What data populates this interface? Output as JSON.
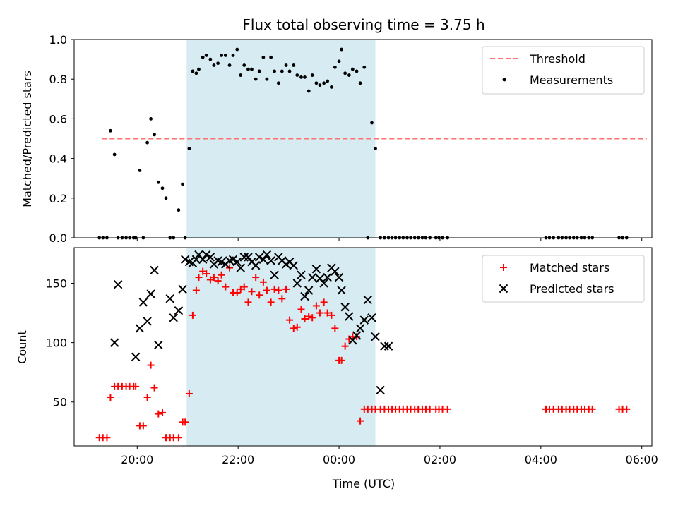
{
  "chart_data": [
    {
      "type": "scatter",
      "title": "Flux total observing time = 3.75 h",
      "xlabel": "",
      "ylabel": "Matched/Predicted stars",
      "xlim_hours": [
        18.75,
        30.2
      ],
      "ylim": [
        0,
        1.0
      ],
      "yticks": [
        0.0,
        0.2,
        0.4,
        0.6,
        0.8,
        1.0
      ],
      "ytick_labels": [
        "0.0",
        "0.2",
        "0.4",
        "0.6",
        "0.8",
        "1.0"
      ],
      "xtick_hours": [
        20,
        22,
        24,
        26,
        28,
        30
      ],
      "shaded_interval_hours": [
        20.98,
        24.72
      ],
      "shade_color": "#add8e6",
      "threshold": {
        "name": "Threshold",
        "value": 0.5,
        "x_start": 19.3,
        "x_end": 30.1,
        "color": "#ff7070"
      },
      "legend": [
        "Threshold",
        "Measurements"
      ],
      "legend_position": "upper right",
      "series": [
        {
          "name": "Measurements",
          "marker": "dot",
          "color": "#000000",
          "x": [
            19.25,
            19.32,
            19.4,
            19.47,
            19.55,
            19.62,
            19.7,
            19.78,
            19.85,
            19.93,
            19.97,
            20.05,
            20.12,
            20.2,
            20.27,
            20.34,
            20.42,
            20.5,
            20.57,
            20.65,
            20.72,
            20.82,
            20.9,
            20.95,
            21.03,
            21.1,
            21.17,
            21.22,
            21.3,
            21.37,
            21.45,
            21.52,
            21.6,
            21.67,
            21.75,
            21.83,
            21.9,
            21.98,
            22.05,
            22.12,
            22.2,
            22.27,
            22.35,
            22.42,
            22.5,
            22.57,
            22.65,
            22.72,
            22.8,
            22.87,
            22.95,
            23.02,
            23.1,
            23.17,
            23.25,
            23.32,
            23.4,
            23.47,
            23.55,
            23.62,
            23.7,
            23.77,
            23.85,
            23.92,
            24.0,
            24.05,
            24.12,
            24.2,
            24.27,
            24.35,
            24.42,
            24.5,
            24.57,
            24.65,
            24.72,
            24.82,
            24.9,
            24.98,
            25.05,
            25.12,
            25.2,
            25.27,
            25.35,
            25.42,
            25.5,
            25.57,
            25.65,
            25.72,
            25.8,
            25.92,
            25.98,
            26.05,
            26.15,
            28.1,
            28.17,
            28.25,
            28.35,
            28.42,
            28.5,
            28.57,
            28.65,
            28.72,
            28.8,
            28.87,
            28.95,
            29.02,
            29.55,
            29.62,
            29.7
          ],
          "y": [
            0.0,
            0.0,
            0.0,
            0.54,
            0.42,
            0.0,
            0.0,
            0.0,
            0.0,
            0.0,
            0.0,
            0.34,
            0.0,
            0.48,
            0.6,
            0.52,
            0.28,
            0.25,
            0.2,
            0.0,
            0.0,
            0.14,
            0.27,
            0.0,
            0.45,
            0.84,
            0.83,
            0.85,
            0.91,
            0.92,
            0.9,
            0.87,
            0.88,
            0.92,
            0.92,
            0.87,
            0.92,
            0.95,
            0.82,
            0.87,
            0.85,
            0.85,
            0.8,
            0.84,
            0.91,
            0.8,
            0.91,
            0.84,
            0.78,
            0.84,
            0.87,
            0.84,
            0.87,
            0.82,
            0.81,
            0.81,
            0.74,
            0.82,
            0.78,
            0.77,
            0.78,
            0.79,
            0.76,
            0.86,
            0.89,
            0.95,
            0.83,
            0.82,
            0.85,
            0.84,
            0.78,
            0.86,
            0.0,
            0.58,
            0.45,
            0.0,
            0.0,
            0.0,
            0.0,
            0.0,
            0.0,
            0.0,
            0.0,
            0.0,
            0.0,
            0.0,
            0.0,
            0.0,
            0.0,
            0.0,
            0.0,
            0.0,
            0.0,
            0.0,
            0.0,
            0.0,
            0.0,
            0.0,
            0.0,
            0.0,
            0.0,
            0.0,
            0.0,
            0.0,
            0.0,
            0.0,
            0.0,
            0.0,
            0.0
          ]
        }
      ]
    },
    {
      "type": "scatter",
      "title": "",
      "xlabel": "Time (UTC)",
      "ylabel": "Count",
      "xlim_hours": [
        18.75,
        30.2
      ],
      "ylim": [
        13,
        180
      ],
      "yticks": [
        50,
        100,
        150
      ],
      "ytick_labels": [
        "50",
        "100",
        "150"
      ],
      "xtick_hours": [
        20,
        22,
        24,
        26,
        28,
        30
      ],
      "xtick_labels": [
        "20:00",
        "22:00",
        "00:00",
        "02:00",
        "04:00",
        "06:00"
      ],
      "shaded_interval_hours": [
        20.98,
        24.72
      ],
      "shade_color": "#add8e6",
      "legend": [
        "Matched stars",
        "Predicted stars"
      ],
      "legend_position": "upper right",
      "series": [
        {
          "name": "Matched stars",
          "marker": "plus",
          "color": "#ff0000",
          "x": [
            19.25,
            19.32,
            19.4,
            19.47,
            19.55,
            19.62,
            19.7,
            19.78,
            19.85,
            19.93,
            19.97,
            20.05,
            20.12,
            20.2,
            20.27,
            20.34,
            20.42,
            20.5,
            20.57,
            20.65,
            20.72,
            20.82,
            20.9,
            20.95,
            21.03,
            21.1,
            21.17,
            21.22,
            21.3,
            21.37,
            21.45,
            21.52,
            21.6,
            21.67,
            21.75,
            21.83,
            21.9,
            21.98,
            22.05,
            22.12,
            22.2,
            22.27,
            22.35,
            22.42,
            22.5,
            22.57,
            22.65,
            22.72,
            22.8,
            22.87,
            22.95,
            23.02,
            23.1,
            23.17,
            23.25,
            23.32,
            23.4,
            23.47,
            23.55,
            23.62,
            23.7,
            23.77,
            23.85,
            23.92,
            24.0,
            24.05,
            24.12,
            24.2,
            24.27,
            24.35,
            24.42,
            24.5,
            24.57,
            24.65,
            24.72,
            24.82,
            24.9,
            24.98,
            25.05,
            25.12,
            25.2,
            25.27,
            25.35,
            25.42,
            25.5,
            25.57,
            25.65,
            25.72,
            25.8,
            25.92,
            25.98,
            26.05,
            26.15,
            28.1,
            28.17,
            28.25,
            28.35,
            28.42,
            28.5,
            28.57,
            28.65,
            28.72,
            28.8,
            28.87,
            28.95,
            29.02,
            29.55,
            29.62,
            29.7
          ],
          "y": [
            20,
            20,
            20,
            54,
            63,
            63,
            63,
            63,
            63,
            63,
            63,
            30,
            30,
            54,
            81,
            62,
            40,
            41,
            20,
            20,
            20,
            20,
            33,
            33,
            57,
            123,
            144,
            155,
            160,
            158,
            153,
            155,
            152,
            157,
            147,
            163,
            142,
            142,
            145,
            147,
            134,
            143,
            155,
            140,
            151,
            144,
            134,
            145,
            144,
            137,
            145,
            119,
            112,
            113,
            128,
            120,
            122,
            121,
            131,
            125,
            134,
            125,
            123,
            112,
            85,
            85,
            97,
            103,
            105,
            105,
            34,
            44,
            44,
            44,
            44,
            44,
            44,
            44,
            44,
            44,
            44,
            44,
            44,
            44,
            44,
            44,
            44,
            44,
            44,
            44,
            44,
            44,
            44,
            44,
            44,
            44,
            44,
            44,
            44,
            44,
            44,
            44,
            44,
            44,
            44,
            44,
            44,
            44,
            44
          ],
          "x_fix": null
        },
        {
          "name": "Predicted stars",
          "marker": "x",
          "color": "#000000",
          "x": [
            19.55,
            19.62,
            19.97,
            20.05,
            20.12,
            20.2,
            20.27,
            20.34,
            20.42,
            20.65,
            20.72,
            20.82,
            20.9,
            20.95,
            21.03,
            21.1,
            21.17,
            21.22,
            21.3,
            21.37,
            21.45,
            21.52,
            21.6,
            21.67,
            21.75,
            21.83,
            21.9,
            21.98,
            22.05,
            22.12,
            22.2,
            22.27,
            22.35,
            22.42,
            22.5,
            22.57,
            22.65,
            22.72,
            22.8,
            22.87,
            22.95,
            23.02,
            23.1,
            23.17,
            23.25,
            23.32,
            23.4,
            23.47,
            23.55,
            23.62,
            23.7,
            23.77,
            23.85,
            23.92,
            24.0,
            24.05,
            24.12,
            24.2,
            24.27,
            24.35,
            24.42,
            24.5,
            24.57,
            24.65,
            24.72,
            24.82,
            24.9,
            24.98
          ],
          "y": [
            100,
            149,
            88,
            112,
            134,
            118,
            141,
            161,
            98,
            137,
            121,
            127,
            145,
            170,
            168,
            167,
            170,
            174,
            170,
            174,
            172,
            166,
            169,
            168,
            166,
            169,
            170,
            168,
            163,
            172,
            172,
            168,
            165,
            172,
            170,
            174,
            169,
            157,
            172,
            169,
            166,
            168,
            165,
            150,
            157,
            139,
            144,
            155,
            162,
            154,
            150,
            155,
            163,
            160,
            155,
            144,
            130,
            122,
            102,
            106,
            112,
            119,
            136,
            121,
            105,
            60,
            97,
            97
          ]
        }
      ]
    }
  ]
}
